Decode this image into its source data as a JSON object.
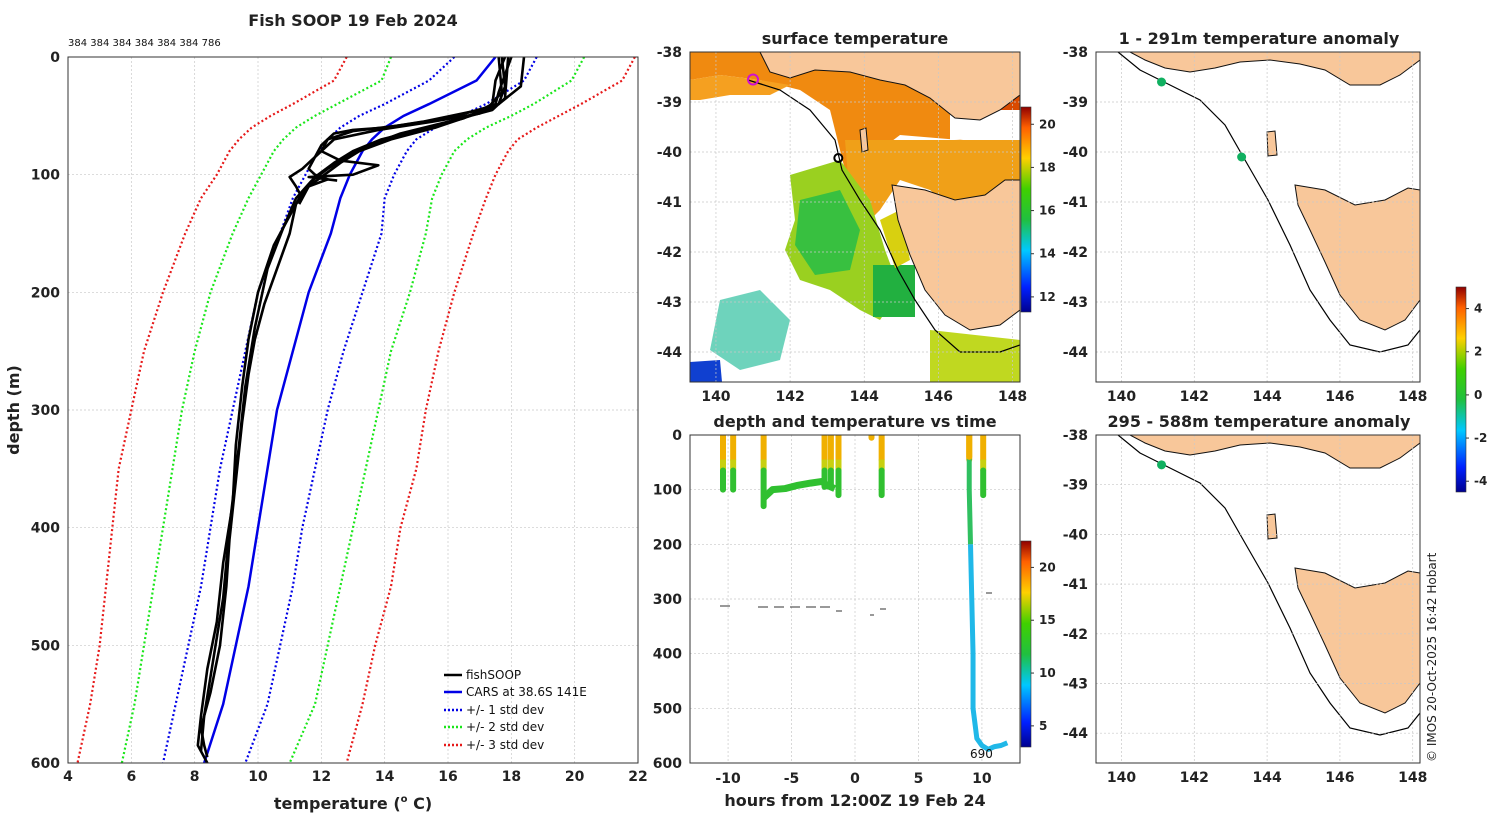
{
  "colors": {
    "fishsoop": "#000000",
    "cars": "#0000e6",
    "std1": "#0000e6",
    "std2": "#19e619",
    "std3": "#e61919",
    "land": "#f8c79a",
    "track": "#000000",
    "station": "#10b060"
  },
  "profile_panel": {
    "title": "Fish SOOP 19 Feb 2024",
    "counts_label": "384 384 384 384 384 384 786",
    "legend": {
      "fishsoop": "fishSOOP",
      "cars": "CARS at 38.6S 141E",
      "std1": "+/- 1 std dev",
      "std2": "+/- 2 std dev",
      "std3": "+/- 3 std dev"
    }
  },
  "sst_panel": {
    "title": "surface temperature",
    "colorbar_ticks": [
      "12",
      "14",
      "16",
      "18",
      "20"
    ]
  },
  "time_panel": {
    "title": "depth and temperature vs time",
    "colorbar_ticks": [
      "5",
      "10",
      "15",
      "20"
    ],
    "end_label": "690"
  },
  "anom_panel_1": {
    "title": "1 - 291m temperature anomaly"
  },
  "anom_panel_2": {
    "title": "295 - 588m temperature anomaly"
  },
  "anom_colorbar_ticks": [
    "4",
    "2",
    "0",
    "-2",
    "-4"
  ],
  "credit": "© IMOS 20-Oct-2025 16:42 Hobart",
  "map_ticks": {
    "lon": [
      "140",
      "142",
      "144",
      "146",
      "148"
    ],
    "lat": [
      "-38",
      "-39",
      "-40",
      "-41",
      "-42",
      "-43",
      "-44"
    ]
  },
  "chart_data": [
    {
      "type": "line",
      "title": "Fish SOOP 19 Feb 2024",
      "xlabel": "temperature (° C)",
      "ylabel": "depth (m)",
      "xlim": [
        4,
        22
      ],
      "ylim": [
        0,
        600
      ],
      "y_reversed": true,
      "grid": true,
      "legend_position": "bottom-right",
      "xticks": [
        "4",
        "6",
        "8",
        "10",
        "12",
        "14",
        "16",
        "18",
        "20",
        "22"
      ],
      "yticks": [
        "0",
        "100",
        "200",
        "300",
        "400",
        "500",
        "600"
      ],
      "depths": [
        0,
        20,
        40,
        50,
        60,
        70,
        80,
        90,
        100,
        120,
        150,
        200,
        250,
        300,
        350,
        400,
        450,
        500,
        550,
        600
      ],
      "series": [
        {
          "name": "CARS at 38.6S 141E",
          "key": "cars",
          "style": "solid",
          "values": [
            17.5,
            16.9,
            15.4,
            14.6,
            14.0,
            13.6,
            13.3,
            13.1,
            12.9,
            12.6,
            12.3,
            11.6,
            11.1,
            10.6,
            10.3,
            10.0,
            9.7,
            9.3,
            8.9,
            8.3
          ]
        },
        {
          "name": "-1 std dev",
          "key": "std1",
          "style": "dotted",
          "values": [
            16.2,
            15.4,
            14.0,
            13.2,
            12.6,
            12.2,
            11.9,
            11.7,
            11.5,
            11.1,
            10.7,
            10.0,
            9.6,
            9.2,
            8.8,
            8.5,
            8.2,
            7.8,
            7.4,
            7.0
          ]
        },
        {
          "name": "+1 std dev",
          "key": "std1",
          "style": "dotted",
          "values": [
            18.8,
            18.4,
            17.2,
            16.4,
            15.6,
            15.0,
            14.7,
            14.5,
            14.3,
            14.0,
            13.9,
            13.3,
            12.7,
            12.2,
            11.8,
            11.4,
            11.1,
            10.7,
            10.3,
            9.6
          ]
        },
        {
          "name": "-2 std dev",
          "key": "std2",
          "style": "dotted",
          "values": [
            14.2,
            13.9,
            12.5,
            11.8,
            11.2,
            10.8,
            10.5,
            10.3,
            10.1,
            9.7,
            9.2,
            8.5,
            8.0,
            7.6,
            7.3,
            7.0,
            6.7,
            6.4,
            6.1,
            5.7
          ]
        },
        {
          "name": "+2 std dev",
          "key": "std2",
          "style": "dotted",
          "values": [
            20.3,
            19.9,
            18.7,
            18.0,
            17.2,
            16.6,
            16.2,
            16.0,
            15.8,
            15.5,
            15.3,
            14.8,
            14.2,
            13.8,
            13.4,
            13.0,
            12.6,
            12.2,
            11.8,
            11.0
          ]
        },
        {
          "name": "-3 std dev",
          "key": "std3",
          "style": "dotted",
          "values": [
            12.8,
            12.4,
            11.1,
            10.4,
            9.8,
            9.4,
            9.1,
            8.9,
            8.7,
            8.2,
            7.7,
            7.0,
            6.4,
            6.0,
            5.6,
            5.4,
            5.2,
            5.0,
            4.7,
            4.3
          ]
        },
        {
          "name": "+3 std dev",
          "key": "std3",
          "style": "dotted",
          "values": [
            21.9,
            21.5,
            20.2,
            19.5,
            18.8,
            18.2,
            17.9,
            17.7,
            17.5,
            17.2,
            16.8,
            16.2,
            15.7,
            15.3,
            15.0,
            14.5,
            14.2,
            13.7,
            13.3,
            12.8
          ]
        }
      ],
      "profiles": [
        {
          "name": "fishSOOP",
          "points": [
            [
              18.0,
              0
            ],
            [
              17.6,
              30
            ],
            [
              17.5,
              40
            ],
            [
              17.0,
              45
            ],
            [
              15.2,
              55
            ],
            [
              14.0,
              60
            ],
            [
              13.0,
              62
            ],
            [
              12.4,
              65
            ],
            [
              12.0,
              75
            ],
            [
              11.8,
              85
            ],
            [
              11.6,
              95
            ],
            [
              11.8,
              100
            ],
            [
              12.2,
              104
            ],
            [
              11.6,
              110
            ],
            [
              11.3,
              125
            ]
          ]
        },
        {
          "name": "fishSOOP",
          "points": [
            [
              17.7,
              0
            ],
            [
              17.8,
              25
            ],
            [
              17.6,
              40
            ],
            [
              16.0,
              52
            ],
            [
              14.5,
              58
            ],
            [
              13.0,
              63
            ],
            [
              12.2,
              70
            ],
            [
              12.0,
              80
            ],
            [
              11.4,
              95
            ],
            [
              11.0,
              102
            ],
            [
              11.2,
              110
            ],
            [
              11.4,
              120
            ]
          ]
        },
        {
          "name": "fishSOOP",
          "points": [
            [
              18.4,
              0
            ],
            [
              18.3,
              25
            ],
            [
              17.6,
              40
            ],
            [
              17.0,
              48
            ],
            [
              15.5,
              55
            ],
            [
              13.8,
              62
            ],
            [
              12.4,
              70
            ],
            [
              12.0,
              80
            ],
            [
              12.6,
              88
            ],
            [
              13.8,
              92
            ],
            [
              13.0,
              100
            ],
            [
              11.6,
              102
            ],
            [
              12.5,
              105
            ]
          ]
        },
        {
          "name": "fishSOOP",
          "points": [
            [
              17.8,
              0
            ],
            [
              17.5,
              20
            ],
            [
              17.4,
              40
            ],
            [
              16.7,
              50
            ],
            [
              15.6,
              60
            ],
            [
              14.2,
              70
            ],
            [
              13.2,
              80
            ],
            [
              12.6,
              90
            ],
            [
              12.1,
              100
            ],
            [
              11.6,
              110
            ],
            [
              11.2,
              125
            ],
            [
              11.0,
              150
            ],
            [
              10.6,
              180
            ],
            [
              10.2,
              210
            ],
            [
              9.9,
              240
            ],
            [
              9.7,
              270
            ],
            [
              9.5,
              310
            ],
            [
              9.3,
              360
            ],
            [
              9.1,
              410
            ],
            [
              9.0,
              450
            ],
            [
              8.8,
              500
            ],
            [
              8.5,
              540
            ],
            [
              8.2,
              570
            ],
            [
              8.3,
              585
            ],
            [
              8.4,
              595
            ]
          ]
        },
        {
          "name": "fishSOOP",
          "points": [
            [
              17.6,
              0
            ],
            [
              17.7,
              30
            ],
            [
              17.3,
              42
            ],
            [
              16.5,
              52
            ],
            [
              15.4,
              60
            ],
            [
              13.9,
              70
            ],
            [
              13.0,
              80
            ],
            [
              12.4,
              90
            ],
            [
              11.9,
              100
            ],
            [
              11.4,
              115
            ],
            [
              11.0,
              135
            ],
            [
              10.5,
              160
            ],
            [
              10.0,
              200
            ],
            [
              9.7,
              240
            ],
            [
              9.5,
              280
            ],
            [
              9.3,
              330
            ],
            [
              9.2,
              380
            ],
            [
              8.9,
              430
            ],
            [
              8.7,
              480
            ],
            [
              8.4,
              520
            ],
            [
              8.2,
              560
            ],
            [
              8.1,
              585
            ],
            [
              8.4,
              600
            ]
          ]
        },
        {
          "name": "fishSOOP",
          "points": [
            [
              17.9,
              0
            ],
            [
              17.8,
              35
            ],
            [
              17.4,
              45
            ],
            [
              16.0,
              55
            ],
            [
              14.5,
              65
            ],
            [
              13.5,
              75
            ],
            [
              12.8,
              85
            ],
            [
              12.2,
              95
            ],
            [
              11.7,
              105
            ],
            [
              11.2,
              120
            ],
            [
              10.8,
              145
            ],
            [
              10.3,
              180
            ],
            [
              9.9,
              230
            ],
            [
              9.6,
              280
            ],
            [
              9.4,
              330
            ],
            [
              9.1,
              400
            ],
            [
              8.9,
              460
            ],
            [
              8.6,
              510
            ],
            [
              8.3,
              560
            ],
            [
              8.2,
              590
            ]
          ]
        }
      ]
    },
    {
      "type": "heatmap",
      "title": "surface temperature",
      "x_range": [
        139.3,
        148.2
      ],
      "y_range": [
        -44.6,
        -38
      ],
      "colorbar_range": [
        11.3,
        20.8
      ],
      "xticks": [
        "140",
        "142",
        "144",
        "146",
        "148"
      ],
      "yticks": [
        "-38",
        "-39",
        "-40",
        "-41",
        "-42",
        "-43",
        "-44"
      ],
      "vessel_positions": [
        [
          141.0,
          -38.55
        ],
        [
          143.3,
          -40.12
        ]
      ]
    },
    {
      "type": "scatter",
      "title": "depth and temperature vs time",
      "xlabel": "hours from 12:00Z 19 Feb 24",
      "xlim": [
        -13,
        13
      ],
      "ylim": [
        0,
        600
      ],
      "y_reversed": true,
      "colorbar_range": [
        3,
        22.5
      ],
      "xticks": [
        "-10",
        "-5",
        "0",
        "5",
        "10"
      ],
      "yticks": [
        "0",
        "100",
        "200",
        "300",
        "400",
        "500",
        "600"
      ],
      "casts": [
        {
          "t": -10.4,
          "max_depth": 100
        },
        {
          "t": -9.6,
          "max_depth": 100
        },
        {
          "t": -7.2,
          "max_depth": 130
        },
        {
          "t": -2.4,
          "max_depth": 95
        },
        {
          "t": -1.9,
          "max_depth": 95
        },
        {
          "t": -1.3,
          "max_depth": 110
        },
        {
          "t": 1.3,
          "max_depth": 5
        },
        {
          "t": 2.1,
          "max_depth": 110
        },
        {
          "t": 9.0,
          "max_depth": 575
        },
        {
          "t": 10.1,
          "max_depth": 110
        }
      ],
      "deep_trace": [
        [
          9.0,
          0
        ],
        [
          9.0,
          100
        ],
        [
          9.1,
          200
        ],
        [
          9.2,
          300
        ],
        [
          9.3,
          400
        ],
        [
          9.3,
          500
        ],
        [
          9.6,
          555
        ],
        [
          10.0,
          568
        ],
        [
          10.5,
          575
        ],
        [
          11.0,
          570
        ],
        [
          11.5,
          568
        ],
        [
          12.0,
          563
        ]
      ]
    },
    {
      "type": "scatter",
      "title": "1 - 291m temperature anomaly",
      "x_range": [
        139.3,
        148.2
      ],
      "y_range": [
        -44.6,
        -38
      ],
      "points": [
        {
          "lon": 141.1,
          "lat": -38.6,
          "anomaly": 0.8
        },
        {
          "lon": 143.3,
          "lat": -40.1,
          "anomaly": 0.6
        }
      ]
    },
    {
      "type": "scatter",
      "title": "295 - 588m temperature anomaly",
      "x_range": [
        139.3,
        148.2
      ],
      "y_range": [
        -44.6,
        -38
      ],
      "points": [
        {
          "lon": 141.1,
          "lat": -38.6,
          "anomaly": 0.7
        }
      ]
    }
  ]
}
